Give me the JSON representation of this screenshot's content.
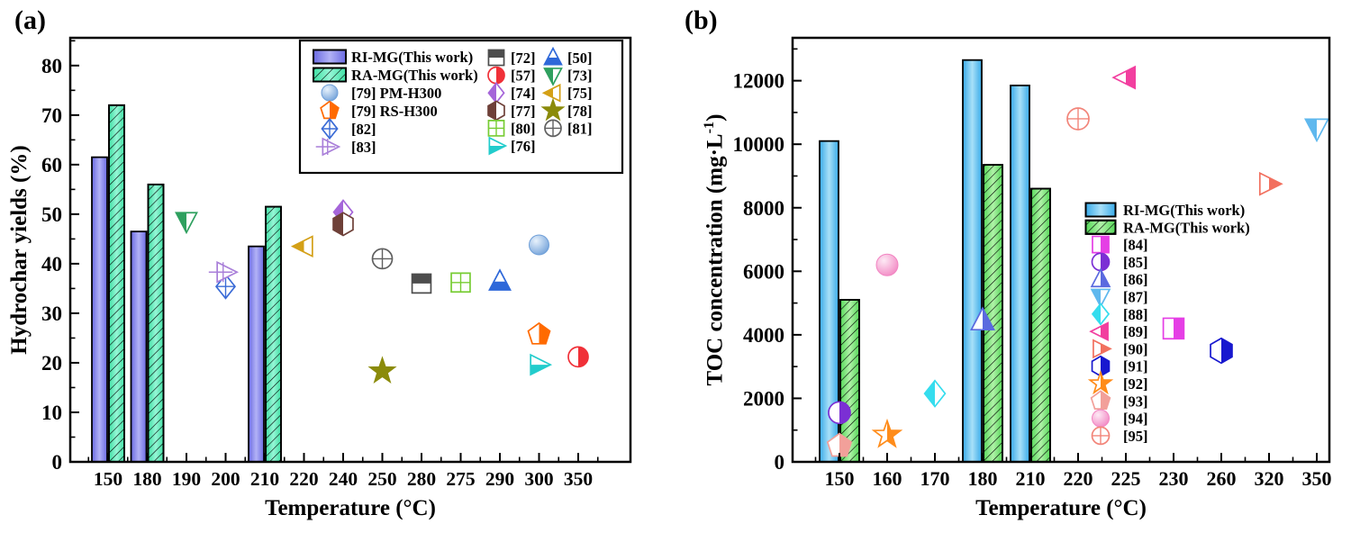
{
  "figure": {
    "background": "#ffffff"
  },
  "panels": [
    {
      "letter": "(a)",
      "xlabel": "Temperature (°C)",
      "ylabel_parts": [
        {
          "t": "Hydrochar yields (%)"
        }
      ]
    },
    {
      "letter": "(b)",
      "xlabel": "Temperature (°C)",
      "ylabel_parts": [
        {
          "t": "TOC concentration (mg·L"
        },
        {
          "t": "-1",
          "sup": true
        },
        {
          "t": ")"
        }
      ]
    }
  ],
  "bar_styles": {
    "bar-ri-a": {
      "edge": "#6A6AE2",
      "center": "#B2B2F6",
      "hatch": false
    },
    "bar-ra-a": {
      "edge": "#3FE0A4",
      "center": "#96F6D6",
      "hatch": true
    },
    "bar-ri-b": {
      "edge": "#38AAE8",
      "center": "#A8E0F8",
      "hatch": false
    },
    "bar-ra-b": {
      "edge": "#55D858",
      "center": "#B0F2A8",
      "hatch": true
    }
  },
  "markers": {
    "pm": {
      "shape": "circle",
      "fill": "sphere",
      "color": "#6F9FD8",
      "hi": "#E8F2FC"
    },
    "rs": {
      "shape": "pentagon",
      "fill": "right",
      "color": "#FF6A00"
    },
    "m82": {
      "shape": "diamond",
      "fill": "cross",
      "color": "#3A6BD6"
    },
    "m83": {
      "shape": "arrow-right",
      "fill": "cross",
      "color": "#A97FD9"
    },
    "m72": {
      "shape": "square",
      "fill": "top",
      "color": "#4D4D4D"
    },
    "m57": {
      "shape": "circle",
      "fill": "right",
      "color": "#F03038"
    },
    "m74": {
      "shape": "diamond",
      "fill": "left",
      "color": "#A565D9"
    },
    "m77": {
      "shape": "hexagon",
      "fill": "left",
      "color": "#6E4038"
    },
    "m80": {
      "shape": "square",
      "fill": "grid",
      "color": "#77CC33"
    },
    "m76": {
      "shape": "triangle-right",
      "fill": "bottom",
      "color": "#22CCCC"
    },
    "m50": {
      "shape": "triangle-up",
      "fill": "bottom",
      "color": "#2E68D9"
    },
    "m73": {
      "shape": "triangle-down",
      "fill": "left",
      "color": "#2FA05F"
    },
    "m75": {
      "shape": "triangle-left",
      "fill": "left",
      "color": "#D4A017"
    },
    "m78": {
      "shape": "star",
      "fill": "full",
      "color": "#8B8B0A"
    },
    "m81": {
      "shape": "circle",
      "fill": "cross",
      "color": "#606060"
    },
    "m84": {
      "shape": "square",
      "fill": "right",
      "color": "#E53FE5"
    },
    "m85": {
      "shape": "circle",
      "fill": "right",
      "color": "#7B2FD4"
    },
    "m86": {
      "shape": "triangle-up",
      "fill": "right",
      "color": "#5A6ADF"
    },
    "m87": {
      "shape": "triangle-down",
      "fill": "left",
      "color": "#5FB8EE"
    },
    "m88": {
      "shape": "diamond",
      "fill": "left",
      "color": "#35DDEE"
    },
    "m89": {
      "shape": "triangle-left",
      "fill": "right",
      "color": "#F23F9F"
    },
    "m90": {
      "shape": "triangle-right",
      "fill": "right",
      "color": "#F2705F"
    },
    "m91": {
      "shape": "hexagon",
      "fill": "right",
      "color": "#1818CF"
    },
    "m92": {
      "shape": "star",
      "fill": "right",
      "color": "#FF8C1A"
    },
    "m93": {
      "shape": "pentagon",
      "fill": "right",
      "color": "#F2A09A"
    },
    "m94": {
      "shape": "circle",
      "fill": "sphere",
      "color": "#F285C2",
      "hi": "#FDEAF5"
    },
    "m95": {
      "shape": "circle",
      "fill": "cross",
      "color": "#F2857A"
    }
  },
  "chart_data": [
    {
      "type": "bar+scatter",
      "panel": "(a)",
      "xlabel": "Temperature (°C)",
      "ylabel": "Hydrochar yields (%)",
      "categories": [
        "150",
        "180",
        "190",
        "200",
        "210",
        "220",
        "240",
        "250",
        "280",
        "275",
        "290",
        "300",
        "350"
      ],
      "ylim": [
        0,
        85.6
      ],
      "yticks": [
        0,
        10,
        20,
        30,
        40,
        50,
        60,
        70,
        80
      ],
      "y_minor_step": 5,
      "grid": false,
      "bar_series": [
        {
          "name": "RI-MG(This work)",
          "style": "bar-ri-a",
          "values": {
            "150": 61.5,
            "180": 46.5,
            "210": 43.5
          }
        },
        {
          "name": "RA-MG(This work)",
          "style": "bar-ra-a",
          "values": {
            "150": 72.0,
            "180": 56.0,
            "210": 51.5
          }
        }
      ],
      "scatter_series": [
        {
          "name": "[79] PM-H300",
          "marker": "pm",
          "points": [
            [
              "300",
              43.8
            ]
          ]
        },
        {
          "name": "[79] RS-H300",
          "marker": "rs",
          "points": [
            [
              "300",
              25.7
            ]
          ]
        },
        {
          "name": "[82]",
          "marker": "m82",
          "points": [
            [
              "200",
              35.4
            ]
          ]
        },
        {
          "name": "[83]",
          "marker": "m83",
          "points": [
            [
              "200",
              38.3
            ]
          ]
        },
        {
          "name": "[72]",
          "marker": "m72",
          "points": [
            [
              "280",
              36.0
            ]
          ]
        },
        {
          "name": "[57]",
          "marker": "m57",
          "points": [
            [
              "350",
              21.2
            ]
          ]
        },
        {
          "name": "[74]",
          "marker": "m74",
          "points": [
            [
              "240",
              50.4
            ]
          ]
        },
        {
          "name": "[77]",
          "marker": "m77",
          "points": [
            [
              "240",
              48.0
            ]
          ]
        },
        {
          "name": "[80]",
          "marker": "m80",
          "points": [
            [
              "275",
              36.2
            ]
          ]
        },
        {
          "name": "[76]",
          "marker": "m76",
          "points": [
            [
              "300",
              19.6
            ]
          ]
        },
        {
          "name": "[50]",
          "marker": "m50",
          "points": [
            [
              "290",
              36.4
            ]
          ]
        },
        {
          "name": "[73]",
          "marker": "m73",
          "points": [
            [
              "190",
              48.6
            ]
          ]
        },
        {
          "name": "[75]",
          "marker": "m75",
          "points": [
            [
              "220",
              43.5
            ]
          ]
        },
        {
          "name": "[78]",
          "marker": "m78",
          "points": [
            [
              "250",
              18.3
            ]
          ]
        },
        {
          "name": "[81]",
          "marker": "m81",
          "points": [
            [
              "250",
              41.0
            ]
          ]
        }
      ],
      "legend": {
        "box": true,
        "columns": [
          [
            {
              "type": "bar",
              "style": "bar-ri-a",
              "label": "RI-MG(This work)"
            },
            {
              "type": "bar",
              "style": "bar-ra-a",
              "label": "RA-MG(This work)"
            },
            {
              "type": "marker",
              "marker": "pm",
              "label": "[79] PM-H300"
            },
            {
              "type": "marker",
              "marker": "rs",
              "label": "[79] RS-H300"
            },
            {
              "type": "marker",
              "marker": "m82",
              "label": "[82]"
            },
            {
              "type": "marker",
              "marker": "m83",
              "label": "[83]"
            }
          ],
          [
            {
              "type": "marker",
              "marker": "m72",
              "label": "[72]"
            },
            {
              "type": "marker",
              "marker": "m57",
              "label": "[57]"
            },
            {
              "type": "marker",
              "marker": "m74",
              "label": "[74]"
            },
            {
              "type": "marker",
              "marker": "m77",
              "label": "[77]"
            },
            {
              "type": "marker",
              "marker": "m80",
              "label": "[80]"
            },
            {
              "type": "marker",
              "marker": "m76",
              "label": "[76]"
            }
          ],
          [
            {
              "type": "marker",
              "marker": "m50",
              "label": "[50]"
            },
            {
              "type": "marker",
              "marker": "m73",
              "label": "[73]"
            },
            {
              "type": "marker",
              "marker": "m75",
              "label": "[75]"
            },
            {
              "type": "marker",
              "marker": "m78",
              "label": "[78]"
            },
            {
              "type": "marker",
              "marker": "m81",
              "label": "[81]"
            }
          ]
        ]
      }
    },
    {
      "type": "bar+scatter",
      "panel": "(b)",
      "xlabel": "Temperature (°C)",
      "ylabel": "TOC concentration (mg·L-1)",
      "categories": [
        "150",
        "160",
        "170",
        "180",
        "210",
        "220",
        "225",
        "230",
        "260",
        "320",
        "350"
      ],
      "ylim": [
        0,
        13350
      ],
      "yticks": [
        0,
        2000,
        4000,
        6000,
        8000,
        10000,
        12000
      ],
      "y_minor_step": 1000,
      "grid": false,
      "bar_series": [
        {
          "name": "RI-MG(This work)",
          "style": "bar-ri-b",
          "values": {
            "150": 10100,
            "180": 12650,
            "210": 11850
          }
        },
        {
          "name": "RA-MG(This work)",
          "style": "bar-ra-b",
          "values": {
            "150": 5100,
            "180": 9350,
            "210": 8600
          }
        }
      ],
      "scatter_series": [
        {
          "name": "[84]",
          "marker": "m84",
          "points": [
            [
              "230",
              4200
            ]
          ]
        },
        {
          "name": "[85]",
          "marker": "m85",
          "points": [
            [
              "150",
              1550
            ]
          ]
        },
        {
          "name": "[86]",
          "marker": "m86",
          "points": [
            [
              "180",
              4450
            ]
          ]
        },
        {
          "name": "[87]",
          "marker": "m87",
          "points": [
            [
              "350",
              10500
            ]
          ]
        },
        {
          "name": "[88]",
          "marker": "m88",
          "points": [
            [
              "170",
              2150
            ]
          ]
        },
        {
          "name": "[89]",
          "marker": "m89",
          "points": [
            [
              "225",
              12100
            ]
          ]
        },
        {
          "name": "[90]",
          "marker": "m90",
          "points": [
            [
              "320",
              8750
            ]
          ]
        },
        {
          "name": "[91]",
          "marker": "m91",
          "points": [
            [
              "260",
              3500
            ]
          ]
        },
        {
          "name": "[92]",
          "marker": "m92",
          "points": [
            [
              "160",
              850
            ]
          ]
        },
        {
          "name": "[93]",
          "marker": "m93",
          "points": [
            [
              "150",
              500
            ]
          ]
        },
        {
          "name": "[94]",
          "marker": "m94",
          "points": [
            [
              "160",
              6200
            ]
          ]
        },
        {
          "name": "[95]",
          "marker": "m95",
          "points": [
            [
              "220",
              10800
            ]
          ]
        }
      ],
      "legend": {
        "box": false,
        "columns": [
          [
            {
              "type": "bar",
              "style": "bar-ri-b",
              "label": "RI-MG(This work)"
            },
            {
              "type": "bar",
              "style": "bar-ra-b",
              "label": "RA-MG(This work)"
            },
            {
              "type": "marker",
              "marker": "m84",
              "label": "[84]"
            },
            {
              "type": "marker",
              "marker": "m85",
              "label": "[85]"
            },
            {
              "type": "marker",
              "marker": "m86",
              "label": "[86]"
            },
            {
              "type": "marker",
              "marker": "m87",
              "label": "[87]"
            },
            {
              "type": "marker",
              "marker": "m88",
              "label": "[88]"
            },
            {
              "type": "marker",
              "marker": "m89",
              "label": "[89]"
            },
            {
              "type": "marker",
              "marker": "m90",
              "label": "[90]"
            },
            {
              "type": "marker",
              "marker": "m91",
              "label": "[91]"
            },
            {
              "type": "marker",
              "marker": "m92",
              "label": "[92]"
            },
            {
              "type": "marker",
              "marker": "m93",
              "label": "[93]"
            },
            {
              "type": "marker",
              "marker": "m94",
              "label": "[94]"
            },
            {
              "type": "marker",
              "marker": "m95",
              "label": "[95]"
            }
          ]
        ]
      }
    }
  ]
}
